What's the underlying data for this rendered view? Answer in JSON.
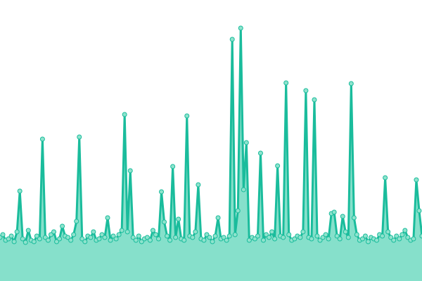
{
  "chart_data": {
    "type": "area",
    "x": [
      0,
      1,
      2,
      3,
      4,
      5,
      6,
      7,
      8,
      9,
      10,
      11,
      12,
      13,
      14,
      15,
      16,
      17,
      18,
      19,
      20,
      21,
      22,
      23,
      24,
      25,
      26,
      27,
      28,
      29,
      30,
      31,
      32,
      33,
      34,
      35,
      36,
      37,
      38,
      39,
      40,
      41,
      42,
      43,
      44,
      45,
      46,
      47,
      48,
      49,
      50,
      51,
      52,
      53,
      54,
      55,
      56,
      57,
      58,
      59,
      60,
      61,
      62,
      63,
      64,
      65,
      66,
      67,
      68,
      69,
      70,
      71,
      72,
      73,
      74,
      75,
      76,
      77,
      78,
      79,
      80,
      81,
      82,
      83,
      84,
      85,
      86,
      87,
      88,
      89,
      90,
      91,
      92,
      93,
      94,
      95,
      96,
      97,
      98,
      99,
      100,
      101,
      102,
      103,
      104,
      105,
      106,
      107,
      108,
      109,
      110,
      111,
      112,
      113,
      114,
      115,
      116,
      117,
      118,
      119,
      120,
      121,
      122,
      123,
      124,
      125,
      126,
      127,
      128,
      129,
      130,
      131,
      132,
      133,
      134,
      135,
      136,
      137,
      138,
      139,
      140,
      141,
      142,
      143,
      144,
      145,
      146,
      147,
      148,
      149
    ],
    "values": [
      62,
      66,
      58,
      60,
      64,
      56,
      70,
      128,
      60,
      55,
      72,
      58,
      56,
      64,
      60,
      202,
      62,
      58,
      66,
      70,
      56,
      60,
      78,
      64,
      62,
      58,
      66,
      85,
      205,
      60,
      56,
      64,
      62,
      70,
      58,
      60,
      66,
      62,
      90,
      58,
      64,
      60,
      66,
      72,
      237,
      70,
      157,
      62,
      58,
      64,
      56,
      60,
      62,
      58,
      72,
      66,
      60,
      127,
      84,
      64,
      58,
      163,
      62,
      88,
      60,
      58,
      235,
      64,
      62,
      70,
      137,
      60,
      58,
      66,
      62,
      56,
      64,
      90,
      60,
      62,
      58,
      64,
      344,
      66,
      100,
      360,
      130,
      197,
      58,
      62,
      60,
      64,
      182,
      58,
      66,
      62,
      70,
      60,
      164,
      64,
      62,
      282,
      66,
      58,
      60,
      64,
      62,
      70,
      271,
      62,
      60,
      258,
      64,
      58,
      62,
      66,
      60,
      96,
      98,
      64,
      60,
      92,
      70,
      62,
      281,
      90,
      66,
      58,
      60,
      64,
      56,
      62,
      60,
      58,
      66,
      64,
      147,
      70,
      62,
      58,
      64,
      60,
      66,
      72,
      62,
      58,
      60,
      144,
      100,
      64
    ],
    "xlim": [
      0,
      149
    ],
    "ylim": [
      0,
      400
    ],
    "color": "#1abc9c",
    "fill_color": "#86e0cb",
    "marker_fill": "#8ee3cd"
  }
}
